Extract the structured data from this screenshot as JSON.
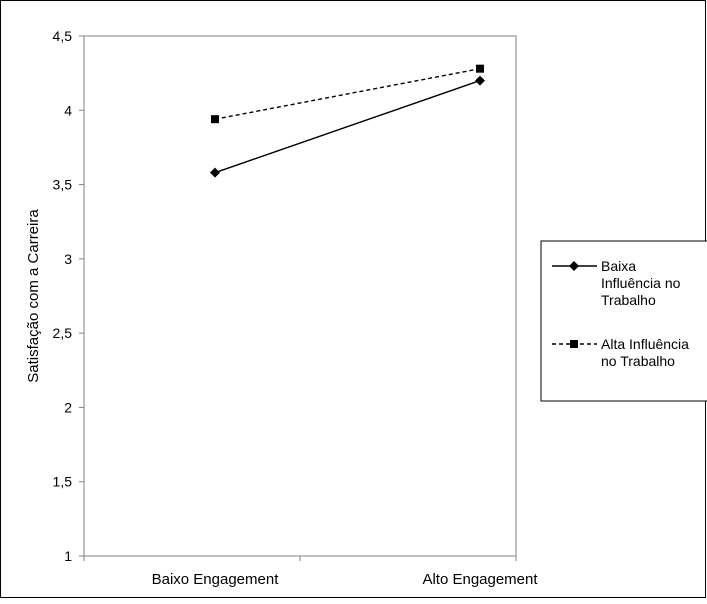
{
  "chart_data": {
    "type": "line",
    "title": "",
    "xlabel": "",
    "ylabel": "Satisfação com a Carreira",
    "categories": [
      "Baixo Engagement",
      "Alto Engagement"
    ],
    "ylim": [
      1,
      4.5
    ],
    "yticks": [
      1,
      1.5,
      2,
      2.5,
      3,
      3.5,
      4,
      4.5
    ],
    "ytick_labels": [
      "1",
      "1,5",
      "2",
      "2,5",
      "3",
      "3,5",
      "4",
      "4,5"
    ],
    "grid": false,
    "legend_position": "right",
    "series": [
      {
        "name": "Baixa Influência no Trabalho",
        "legend_lines": [
          "Baixa",
          "Influência no",
          "Trabalho"
        ],
        "values": [
          3.58,
          4.2
        ],
        "marker": "diamond",
        "line_style": "solid",
        "color": "#000000"
      },
      {
        "name": "Alta Influência no Trabalho",
        "legend_lines": [
          "Alta Influência",
          "no Trabalho"
        ],
        "values": [
          3.94,
          4.28
        ],
        "marker": "square",
        "line_style": "dashed",
        "color": "#000000"
      }
    ]
  }
}
